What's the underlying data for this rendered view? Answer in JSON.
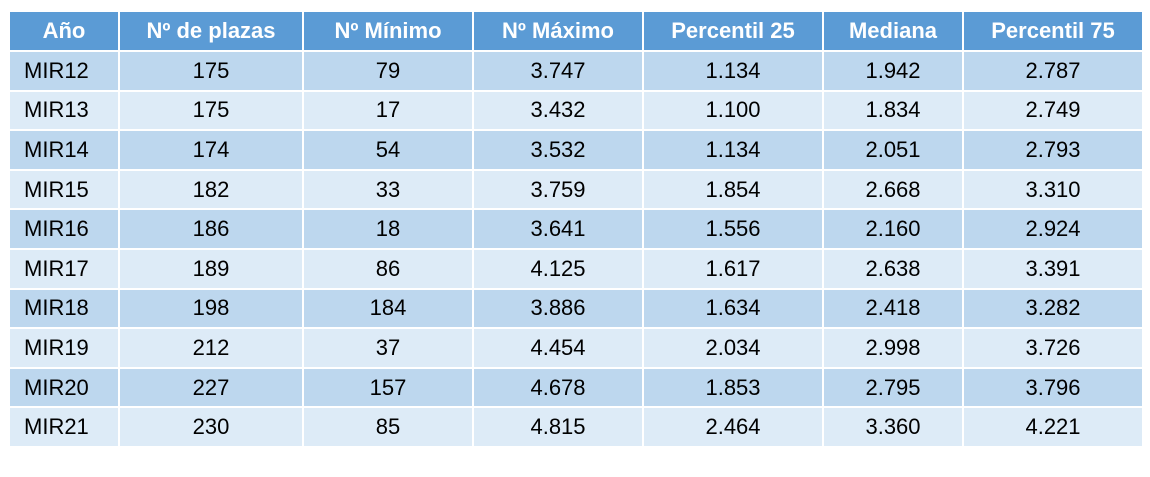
{
  "table": {
    "header": [
      "Año",
      "Nº de plazas",
      "Nº Mínimo",
      "Nº Máximo",
      "Percentil 25",
      "Mediana",
      "Percentil 75"
    ],
    "rows": [
      [
        "MIR12",
        "175",
        "79",
        "3.747",
        "1.134",
        "1.942",
        "2.787"
      ],
      [
        "MIR13",
        "175",
        "17",
        "3.432",
        "1.100",
        "1.834",
        "2.749"
      ],
      [
        "MIR14",
        "174",
        "54",
        "3.532",
        "1.134",
        "2.051",
        "2.793"
      ],
      [
        "MIR15",
        "182",
        "33",
        "3.759",
        "1.854",
        "2.668",
        "3.310"
      ],
      [
        "MIR16",
        "186",
        "18",
        "3.641",
        "1.556",
        "2.160",
        "2.924"
      ],
      [
        "MIR17",
        "189",
        "86",
        "4.125",
        "1.617",
        "2.638",
        "3.391"
      ],
      [
        "MIR18",
        "198",
        "184",
        "3.886",
        "1.634",
        "2.418",
        "3.282"
      ],
      [
        "MIR19",
        "212",
        "37",
        "4.454",
        "2.034",
        "2.998",
        "3.726"
      ],
      [
        "MIR20",
        "227",
        "157",
        "4.678",
        "1.853",
        "2.795",
        "3.796"
      ],
      [
        "MIR21",
        "230",
        "85",
        "4.815",
        "2.464",
        "3.360",
        "4.221"
      ]
    ]
  }
}
